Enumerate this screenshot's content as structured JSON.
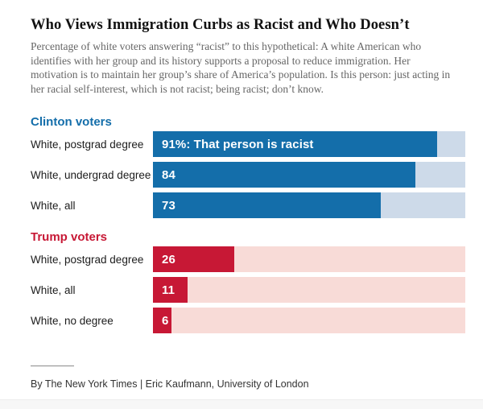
{
  "title": "Who Views Immigration Curbs as Racist and Who Doesn’t",
  "subtitle": "Percentage of white voters answering “racist” to this hypothetical: A white American who identifies with her group and its history supports a proposal to reduce immigration. Her motivation is to maintain her group’s share of America’s population. Is this person: just acting in her racial self-interest, which is not racist; being racist; don’t know.",
  "footer": {
    "credit": "By The New York Times | Eric Kaufmann, University of London"
  },
  "colors": {
    "clinton_bar": "#146eaa",
    "clinton_track": "#cddae9",
    "trump_bar": "#c71835",
    "trump_track": "#f8dbd7"
  },
  "chart_data": {
    "type": "bar",
    "orientation": "horizontal",
    "unit": "percent",
    "xlim": [
      0,
      100
    ],
    "grid": false,
    "legend": "none",
    "title": "Who Views Immigration Curbs as Racist and Who Doesn’t",
    "sections": [
      {
        "name": "Clinton voters",
        "color": "#146eaa",
        "track_color": "#cddae9",
        "rows": [
          {
            "label": "White, postgrad degree",
            "value": 91,
            "bar_label": "91%: That person is racist"
          },
          {
            "label": "White, undergrad degree",
            "value": 84,
            "bar_label": "84"
          },
          {
            "label": "White, all",
            "value": 73,
            "bar_label": "73"
          }
        ]
      },
      {
        "name": "Trump voters",
        "color": "#c71835",
        "track_color": "#f8dbd7",
        "rows": [
          {
            "label": "White, postgrad degree",
            "value": 26,
            "bar_label": "26"
          },
          {
            "label": "White, all",
            "value": 11,
            "bar_label": "11"
          },
          {
            "label": "White, no degree",
            "value": 6,
            "bar_label": "6"
          }
        ]
      }
    ]
  }
}
